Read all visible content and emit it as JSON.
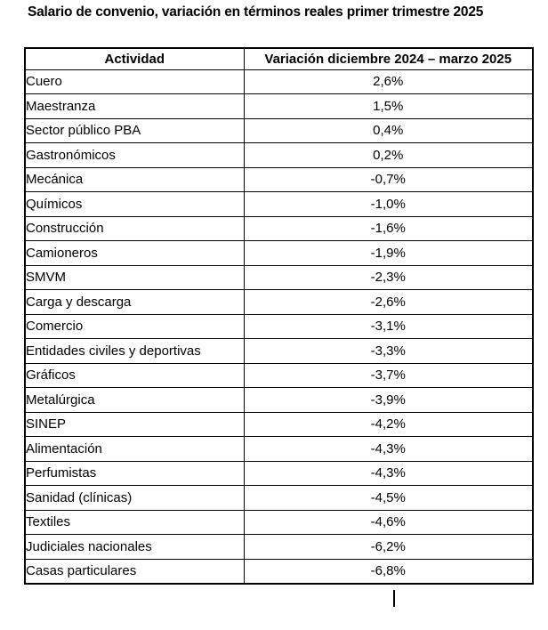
{
  "document": {
    "title": "Salario de convenio, variación en términos reales primer trimestre 2025"
  },
  "table": {
    "columns": [
      "Actividad",
      "Variación diciembre 2024 – marzo 2025"
    ],
    "rows": [
      {
        "actividad": "Cuero",
        "variacion": "2,6%"
      },
      {
        "actividad": "Maestranza",
        "variacion": "1,5%"
      },
      {
        "actividad": "Sector público PBA",
        "variacion": "0,4%"
      },
      {
        "actividad": "Gastronómicos",
        "variacion": "0,2%"
      },
      {
        "actividad": "Mecánica",
        "variacion": "-0,7%"
      },
      {
        "actividad": "Químicos",
        "variacion": "-1,0%"
      },
      {
        "actividad": "Construcción",
        "variacion": "-1,6%"
      },
      {
        "actividad": "Camioneros",
        "variacion": "-1,9%"
      },
      {
        "actividad": "SMVM",
        "variacion": "-2,3%"
      },
      {
        "actividad": "Carga y descarga",
        "variacion": "-2,6%"
      },
      {
        "actividad": "Comercio",
        "variacion": "-3,1%"
      },
      {
        "actividad": "Entidades civiles y deportivas",
        "variacion": "-3,3%"
      },
      {
        "actividad": "Gráficos",
        "variacion": "-3,7%"
      },
      {
        "actividad": "Metalúrgica",
        "variacion": "-3,9%"
      },
      {
        "actividad": "SINEP",
        "variacion": "-4,2%"
      },
      {
        "actividad": "Alimentación",
        "variacion": "-4,3%"
      },
      {
        "actividad": "Perfumistas",
        "variacion": "-4,3%"
      },
      {
        "actividad": "Sanidad (clínicas)",
        "variacion": "-4,5%"
      },
      {
        "actividad": "Textiles",
        "variacion": "-4,6%"
      },
      {
        "actividad": "Judiciales nacionales",
        "variacion": "-6,2%"
      },
      {
        "actividad": "Casas particulares",
        "variacion": "-6,8%"
      }
    ]
  },
  "text_cursor": {
    "row": "Casas particulares"
  }
}
